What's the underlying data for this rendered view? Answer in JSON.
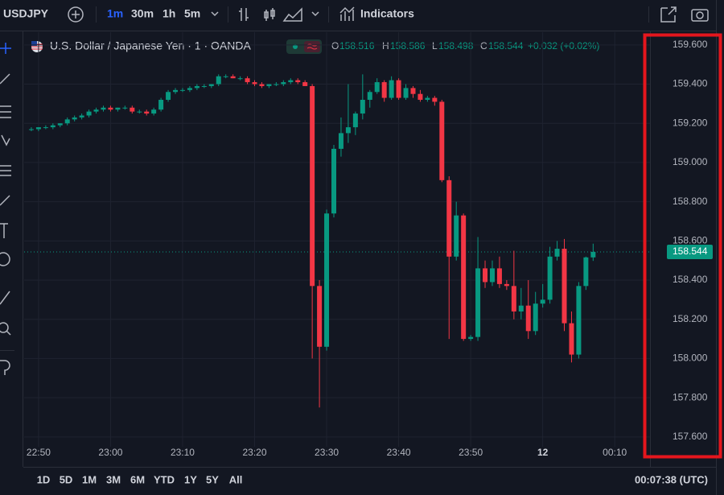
{
  "toolbar": {
    "symbol": "USDJPY",
    "intervals": [
      "1m",
      "30m",
      "1h",
      "5m"
    ],
    "indicators": "Indicators"
  },
  "legend": {
    "title": "U.S. Dollar / Japanese Yen · 1 · OANDA",
    "open_label": "O",
    "open": 158.516,
    "high_label": "H",
    "high": 158.586,
    "low_label": "L",
    "low": 158.498,
    "close_label": "C",
    "close": 158.544,
    "change": "+0.032 (+0.02%)"
  },
  "chart_data": {
    "type": "candlestick",
    "up_color": "#089981",
    "down_color": "#f23645",
    "grid": true,
    "x": [
      "22:49",
      "22:50",
      "22:51",
      "22:52",
      "22:53",
      "22:54",
      "22:55",
      "22:56",
      "22:57",
      "22:58",
      "22:59",
      "23:00",
      "23:01",
      "23:02",
      "23:03",
      "23:04",
      "23:05",
      "23:06",
      "23:07",
      "23:08",
      "23:09",
      "23:10",
      "23:11",
      "23:12",
      "23:13",
      "23:14",
      "23:15",
      "23:16",
      "23:17",
      "23:18",
      "23:19",
      "23:20",
      "23:21",
      "23:22",
      "23:23",
      "23:24",
      "23:25",
      "23:26",
      "23:27",
      "23:28",
      "23:29",
      "23:30",
      "23:31",
      "23:32",
      "23:33",
      "23:34",
      "23:35",
      "23:36",
      "23:37",
      "23:38",
      "23:39",
      "23:40",
      "23:41",
      "23:42",
      "23:43",
      "23:44",
      "23:45",
      "23:46",
      "23:47",
      "23:48",
      "23:49",
      "23:50",
      "23:51",
      "23:52",
      "23:53",
      "23:54",
      "23:55",
      "23:56",
      "23:57",
      "23:58",
      "23:59",
      "00:00",
      "00:01",
      "00:02",
      "00:03",
      "00:04",
      "00:05",
      "00:06",
      "00:07"
    ],
    "open": [
      159.17,
      159.17,
      159.18,
      159.18,
      159.19,
      159.2,
      159.22,
      159.23,
      159.24,
      159.26,
      159.27,
      159.28,
      159.27,
      159.28,
      159.28,
      159.26,
      159.26,
      159.25,
      159.27,
      159.32,
      159.36,
      159.37,
      159.37,
      159.38,
      159.39,
      159.39,
      159.4,
      159.44,
      159.44,
      159.43,
      159.43,
      159.41,
      159.4,
      159.39,
      159.4,
      159.4,
      159.41,
      159.42,
      159.41,
      159.39,
      158.37,
      158.06,
      158.74,
      159.07,
      159.15,
      159.18,
      159.25,
      159.32,
      159.36,
      159.41,
      159.33,
      159.42,
      159.33,
      159.38,
      159.35,
      159.32,
      159.33,
      159.31,
      158.91,
      158.52,
      158.73,
      158.1,
      158.11,
      158.46,
      158.39,
      158.46,
      158.38,
      158.37,
      158.24,
      158.27,
      158.14,
      158.28,
      158.3,
      158.52,
      158.56,
      158.18,
      158.02,
      158.37,
      158.516
    ],
    "high": [
      159.18,
      159.18,
      159.19,
      159.2,
      159.2,
      159.23,
      159.24,
      159.25,
      159.27,
      159.28,
      159.29,
      159.29,
      159.28,
      159.29,
      159.29,
      159.27,
      159.27,
      159.28,
      159.33,
      159.37,
      159.38,
      159.38,
      159.39,
      159.4,
      159.4,
      159.4,
      159.45,
      159.45,
      159.45,
      159.44,
      159.44,
      159.42,
      159.41,
      159.4,
      159.41,
      159.42,
      159.43,
      159.43,
      159.42,
      159.4,
      158.4,
      158.76,
      159.09,
      159.23,
      159.4,
      159.26,
      159.45,
      159.37,
      159.43,
      159.42,
      159.44,
      159.43,
      159.4,
      159.39,
      159.37,
      159.34,
      159.34,
      159.32,
      158.93,
      158.8,
      158.74,
      158.12,
      158.62,
      158.5,
      158.5,
      158.52,
      158.4,
      158.55,
      158.36,
      158.4,
      158.34,
      158.38,
      158.57,
      158.6,
      158.61,
      158.24,
      158.39,
      158.52,
      158.586
    ],
    "low": [
      159.16,
      159.16,
      159.17,
      159.17,
      159.18,
      159.19,
      159.21,
      159.22,
      159.23,
      159.25,
      159.26,
      159.26,
      159.26,
      159.27,
      159.25,
      159.25,
      159.24,
      159.24,
      159.26,
      159.31,
      159.35,
      159.36,
      159.36,
      159.37,
      159.38,
      159.38,
      159.39,
      159.43,
      159.43,
      159.42,
      159.4,
      159.39,
      159.38,
      159.38,
      159.39,
      159.39,
      159.4,
      159.4,
      159.39,
      158.0,
      157.75,
      158.04,
      158.72,
      159.03,
      159.1,
      159.14,
      159.22,
      159.28,
      159.35,
      159.31,
      159.32,
      159.32,
      159.32,
      159.33,
      159.31,
      159.31,
      159.29,
      158.9,
      158.1,
      158.5,
      158.09,
      158.09,
      158.09,
      158.36,
      158.37,
      158.36,
      158.35,
      158.2,
      158.2,
      158.1,
      158.12,
      158.26,
      158.28,
      158.5,
      158.14,
      157.98,
      158.0,
      158.35,
      158.498
    ],
    "close": [
      159.17,
      159.18,
      159.18,
      159.19,
      159.2,
      159.22,
      159.23,
      159.24,
      159.26,
      159.27,
      159.28,
      159.27,
      159.28,
      159.28,
      159.26,
      159.26,
      159.25,
      159.27,
      159.32,
      159.36,
      159.37,
      159.37,
      159.38,
      159.39,
      159.39,
      159.4,
      159.44,
      159.44,
      159.43,
      159.43,
      159.41,
      159.4,
      159.39,
      159.4,
      159.4,
      159.41,
      159.42,
      159.41,
      159.39,
      158.37,
      158.06,
      158.74,
      159.07,
      159.15,
      159.18,
      159.25,
      159.32,
      159.36,
      159.41,
      159.33,
      159.42,
      159.33,
      159.38,
      159.35,
      159.32,
      159.33,
      159.31,
      158.91,
      158.52,
      158.73,
      158.1,
      158.11,
      158.46,
      158.39,
      158.46,
      158.38,
      158.37,
      158.24,
      158.27,
      158.14,
      158.28,
      158.3,
      158.52,
      158.56,
      158.18,
      158.02,
      158.37,
      158.516,
      158.544
    ],
    "xlim": [
      "22:48",
      "00:14"
    ],
    "xticks": [
      "22:50",
      "23:00",
      "23:10",
      "23:20",
      "23:30",
      "23:40",
      "23:50",
      {
        "value": "00:00",
        "label": "12"
      },
      "00:10"
    ],
    "ylim": [
      157.55,
      159.665
    ],
    "yticks": [
      {
        "value": 157.6,
        "label": "157.600"
      },
      {
        "value": 157.8,
        "label": "157.800"
      },
      {
        "value": 158.0,
        "label": "158.000"
      },
      {
        "value": 158.2,
        "label": "158.200"
      },
      {
        "value": 158.4,
        "label": "158.400"
      },
      {
        "value": 158.6,
        "label": "158.600"
      },
      {
        "value": 158.8,
        "label": "158.800"
      },
      {
        "value": 159.0,
        "label": "159.000"
      },
      {
        "value": 159.2,
        "label": "159.200"
      },
      {
        "value": 159.4,
        "label": "159.400"
      },
      {
        "value": 159.6,
        "label": "159.600"
      }
    ],
    "last_price": 158.544
  },
  "bottom_bar": {
    "ranges": [
      "1D",
      "5D",
      "1M",
      "3M",
      "6M",
      "YTD",
      "1Y",
      "5Y",
      "All"
    ],
    "clock": "00:07:38 (UTC)"
  }
}
